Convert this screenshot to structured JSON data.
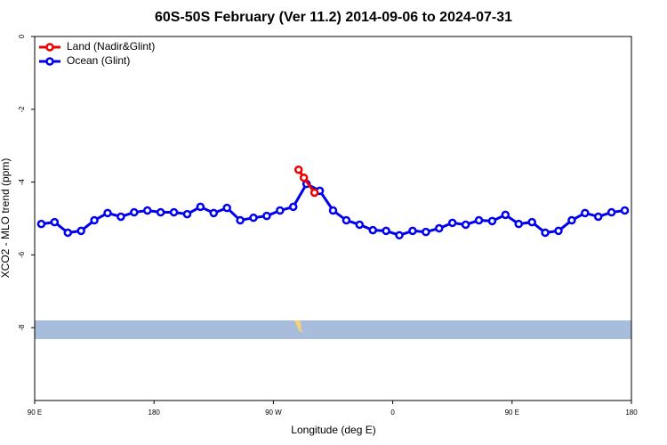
{
  "chart_data": {
    "type": "line",
    "title": "60S-50S February (Ver 11.2)   2014-09-06 to 2024-07-31",
    "xlabel": "Longitude (deg E)",
    "ylabel": "XCO2 - MLO trend (ppm)",
    "xlim": [
      90,
      540
    ],
    "xticks": [
      {
        "value": 90,
        "label": "90 E"
      },
      180,
      {
        "value": 270,
        "label": "90 W"
      },
      {
        "value": 360,
        "label": "0"
      },
      {
        "value": 450,
        "label": "90 E"
      },
      {
        "value": 540,
        "label": "180"
      }
    ],
    "ylim": [
      -10,
      0
    ],
    "yticks": [
      0,
      -2,
      -4,
      -6,
      -8
    ],
    "legend": "top-left",
    "series": [
      {
        "name": "Land (Nadir&Glint)",
        "color": "#ee0000",
        "x": [
          289,
          293,
          301
        ],
        "values": [
          -3.66,
          -3.88,
          -4.29
        ]
      },
      {
        "name": "Ocean (Glint)",
        "color": "#0000ee",
        "x": [
          95,
          105,
          115,
          125,
          135,
          145,
          155,
          165,
          175,
          185,
          195,
          205,
          215,
          225,
          235,
          245,
          255,
          265,
          275,
          285,
          295,
          305,
          315,
          325,
          335,
          345,
          355,
          365,
          375,
          385,
          395,
          405,
          415,
          425,
          435,
          445,
          455,
          465,
          475,
          485,
          495,
          505,
          515,
          525,
          535
        ],
        "values": [
          -5.15,
          -5.1,
          -5.39,
          -5.34,
          -5.05,
          -4.85,
          -4.95,
          -4.83,
          -4.78,
          -4.83,
          -4.83,
          -4.88,
          -4.68,
          -4.85,
          -4.71,
          -5.05,
          -4.98,
          -4.93,
          -4.78,
          -4.68,
          -4.05,
          -4.24,
          -4.78,
          -5.05,
          -5.17,
          -5.32,
          -5.34,
          -5.46,
          -5.34,
          -5.37,
          -5.27,
          -5.12,
          -5.17,
          -5.05,
          -5.07,
          -4.9,
          -5.15,
          -5.1,
          -5.39,
          -5.34,
          -5.05,
          -4.85,
          -4.95,
          -4.83,
          -4.78
        ]
      }
    ]
  }
}
